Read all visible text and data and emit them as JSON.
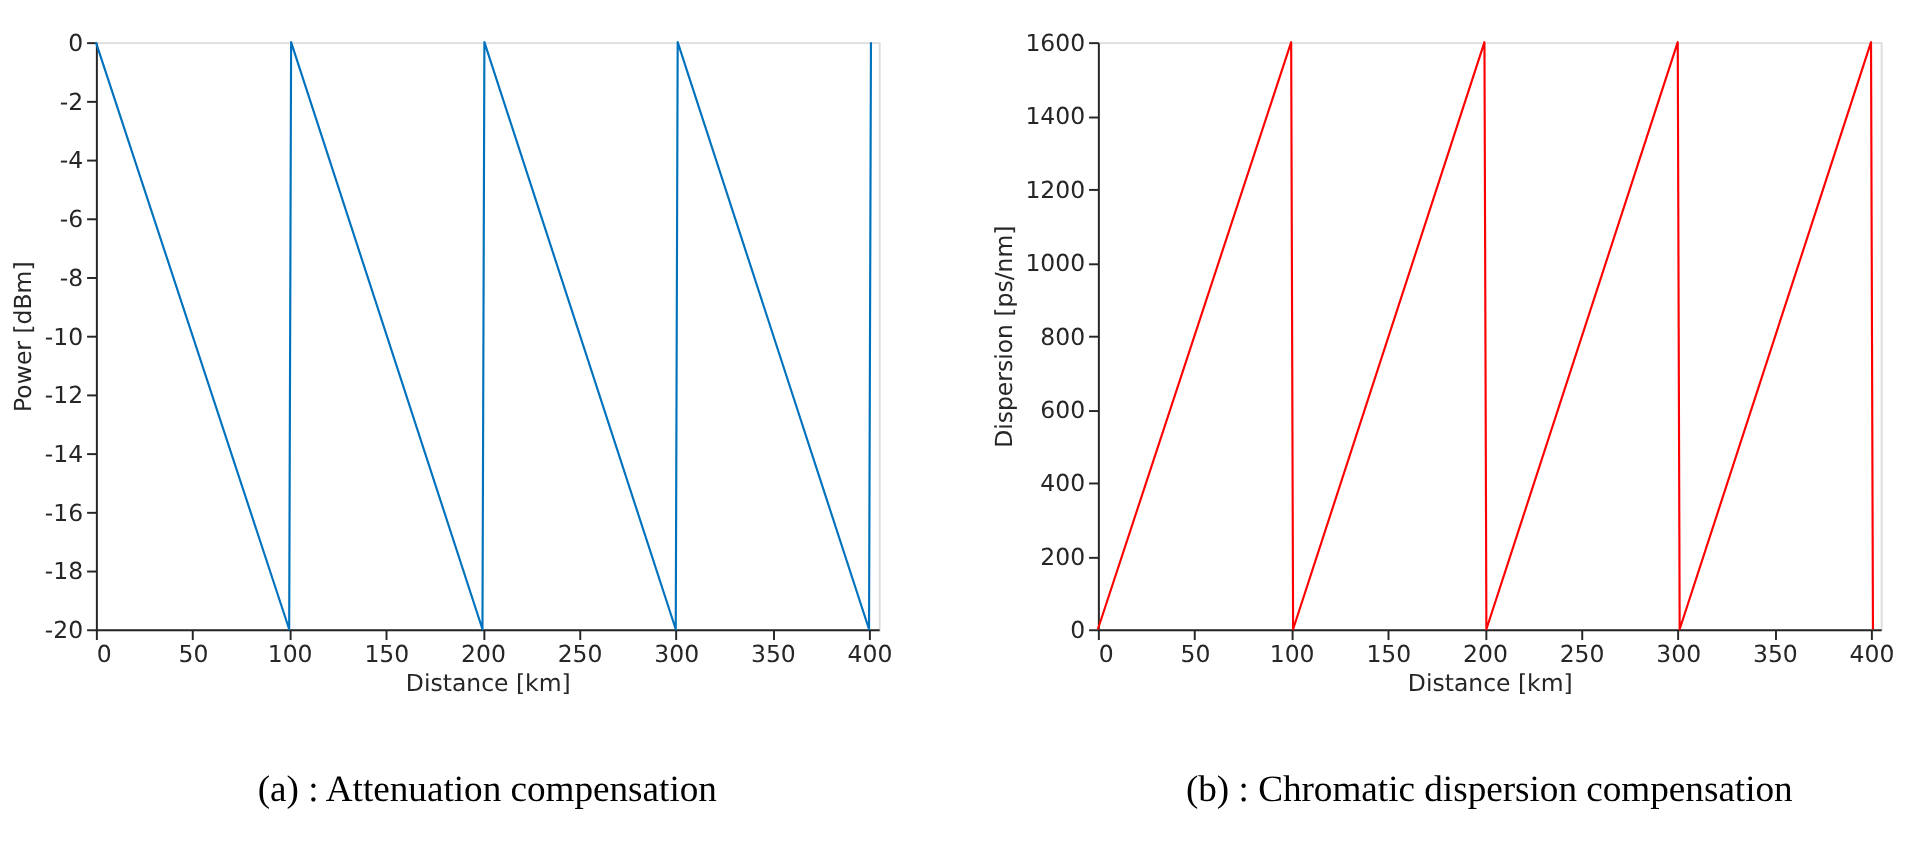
{
  "chart_data": [
    {
      "type": "line",
      "title": "(a) : Attenuation compensation",
      "xlabel": "Distance [km]",
      "ylabel": "Power [dBm]",
      "x": [
        0,
        100,
        101,
        200,
        201,
        300,
        301,
        400,
        401
      ],
      "series": [
        {
          "color": "#0072bd",
          "values": [
            0,
            -20,
            0,
            -20,
            0,
            -20,
            0,
            -20,
            0
          ]
        }
      ],
      "xlim": [
        0,
        405
      ],
      "xticks": [
        0,
        50,
        100,
        150,
        200,
        250,
        300,
        350,
        400
      ],
      "ylim": [
        -20,
        0
      ],
      "yticks": [
        -20,
        -18,
        -16,
        -14,
        -12,
        -10,
        -8,
        -6,
        -4,
        -2,
        0
      ],
      "grid": false,
      "marker": "none",
      "line_style": "solid"
    },
    {
      "type": "line",
      "title": "(b) : Chromatic dispersion compensation",
      "xlabel": "Distance [km]",
      "ylabel": "Dispersion [ps/nm]",
      "x": [
        0,
        100,
        101,
        200,
        201,
        300,
        301,
        400,
        401
      ],
      "series": [
        {
          "color": "#ff0000",
          "values": [
            0,
            1600,
            0,
            1600,
            0,
            1600,
            0,
            1600,
            0
          ]
        }
      ],
      "xlim": [
        0,
        405
      ],
      "xticks": [
        0,
        50,
        100,
        150,
        200,
        250,
        300,
        350,
        400
      ],
      "ylim": [
        0,
        1600
      ],
      "yticks": [
        0,
        200,
        400,
        600,
        800,
        1000,
        1200,
        1400,
        1600
      ],
      "grid": false,
      "marker": "none",
      "line_style": "solid"
    }
  ]
}
